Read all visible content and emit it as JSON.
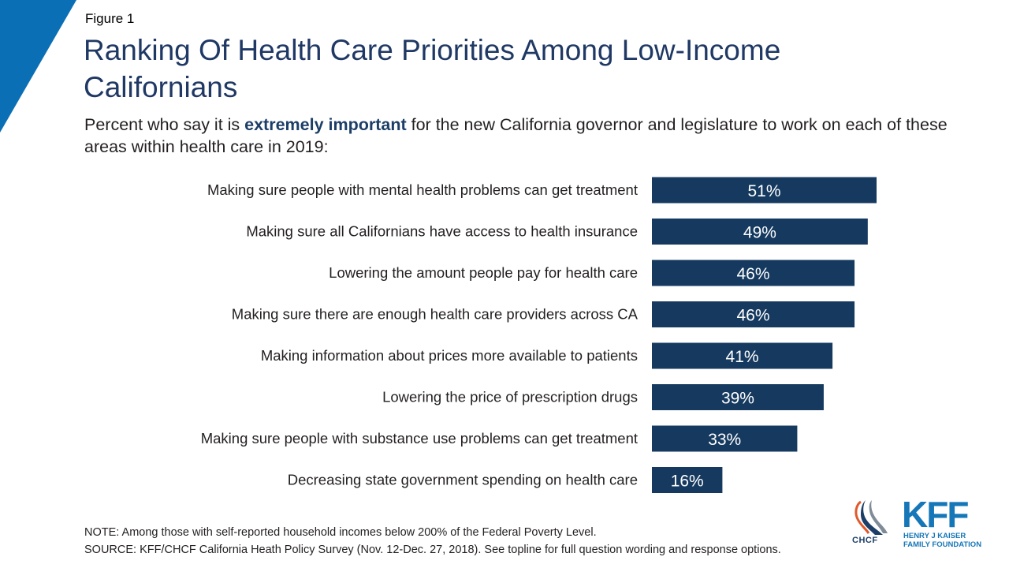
{
  "header": {
    "figure_label": "Figure 1",
    "title": "Ranking Of Health Care Priorities Among Low-Income Californians",
    "subtitle_before": "Percent who say it is ",
    "subtitle_emphasis": "extremely important",
    "subtitle_after": " for the new California governor and legislature to work on each of these areas within health care in 2019:"
  },
  "chart_data": {
    "type": "bar",
    "orientation": "horizontal",
    "categories": [
      "Making sure people with mental health problems can get treatment",
      "Making sure all Californians have access to health insurance",
      "Lowering the amount people pay for health care",
      "Making sure there are enough health care providers across CA",
      "Making information about prices more available to patients",
      "Lowering the price of prescription drugs",
      "Making sure people with substance use problems can get treatment",
      "Decreasing state government spending on health care"
    ],
    "values": [
      51,
      49,
      46,
      46,
      41,
      39,
      33,
      16
    ],
    "data_labels": [
      "51%",
      "49%",
      "46%",
      "46%",
      "41%",
      "39%",
      "33%",
      "16%"
    ],
    "bar_color": "#163a5f",
    "xlim": [
      0,
      100
    ],
    "grid": false,
    "legend": "none"
  },
  "footer": {
    "note": "NOTE: Among those with self-reported household incomes below 200% of the Federal Poverty Level.",
    "source": "SOURCE: KFF/CHCF California Heath Policy Survey (Nov. 12-Dec. 27, 2018). See topline for full question wording and response options."
  },
  "logos": {
    "chcf": "CHCF",
    "kff": "KFF",
    "kff_line1": "HENRY J KAISER",
    "kff_line2": "FAMILY FOUNDATION"
  },
  "colors": {
    "accent": "#0b6fb6",
    "title": "#1f3864",
    "bar": "#163a5f"
  }
}
